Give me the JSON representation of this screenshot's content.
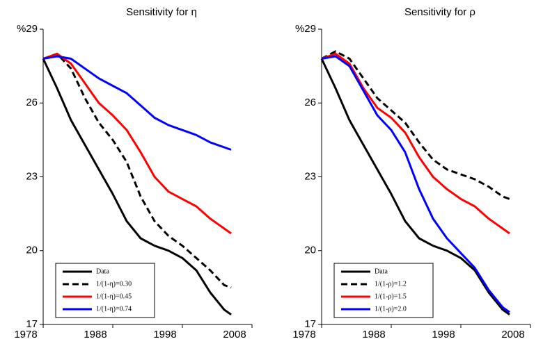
{
  "chart_data": [
    {
      "type": "line",
      "title": "Sensitivity for η",
      "x": [
        1978,
        1980,
        1982,
        1984,
        1986,
        1988,
        1990,
        1992,
        1994,
        1996,
        1998,
        2000,
        2002,
        2004,
        2005
      ],
      "xlim": [
        1978,
        2008
      ],
      "xticks": [
        1978,
        1988,
        1998,
        2008
      ],
      "ylim": [
        17,
        29
      ],
      "yticks": [
        17,
        20,
        23,
        26,
        {
          "value": 29,
          "label": "%29"
        }
      ],
      "legend": "lower left",
      "series": [
        {
          "name": "Data",
          "color": "#000000",
          "linestyle": "solid",
          "values": [
            27.8,
            26.6,
            25.3,
            24.3,
            23.3,
            22.3,
            21.2,
            20.5,
            20.2,
            20.0,
            19.7,
            19.2,
            18.3,
            17.6,
            17.4
          ]
        },
        {
          "name": "1/(1-η)=0.30",
          "color": "#000000",
          "linestyle": "dashed",
          "values": [
            27.8,
            28.0,
            27.4,
            26.2,
            25.2,
            24.5,
            23.6,
            22.2,
            21.2,
            20.6,
            20.2,
            19.7,
            19.2,
            18.6,
            18.5
          ]
        },
        {
          "name": "1/(1-η)=0.45",
          "color": "#ff0000",
          "linestyle": "solid",
          "values": [
            27.8,
            28.0,
            27.6,
            26.8,
            26.0,
            25.5,
            24.9,
            24.0,
            23.0,
            22.4,
            22.1,
            21.8,
            21.3,
            20.9,
            20.7
          ]
        },
        {
          "name": "1/(1-η)=0.74",
          "color": "#0000ff",
          "linestyle": "solid",
          "values": [
            27.8,
            27.9,
            27.8,
            27.4,
            27.0,
            26.7,
            26.4,
            25.9,
            25.4,
            25.1,
            24.9,
            24.7,
            24.4,
            24.2,
            24.1
          ]
        }
      ]
    },
    {
      "type": "line",
      "title": "Sensitivity for ρ",
      "x": [
        1978,
        1980,
        1982,
        1984,
        1986,
        1988,
        1990,
        1992,
        1994,
        1996,
        1998,
        2000,
        2002,
        2004,
        2005
      ],
      "xlim": [
        1978,
        2008
      ],
      "xticks": [
        1978,
        1988,
        1998,
        2008
      ],
      "ylim": [
        17,
        29
      ],
      "yticks": [
        17,
        20,
        23,
        26,
        {
          "value": 29,
          "label": "%29"
        }
      ],
      "legend": "lower left",
      "series": [
        {
          "name": "Data",
          "color": "#000000",
          "linestyle": "solid",
          "values": [
            27.8,
            26.6,
            25.3,
            24.3,
            23.3,
            22.3,
            21.2,
            20.5,
            20.2,
            20.0,
            19.7,
            19.2,
            18.3,
            17.6,
            17.4
          ]
        },
        {
          "name": "1/(1-ρ)=1.2",
          "color": "#000000",
          "linestyle": "dashed",
          "values": [
            27.8,
            28.1,
            27.8,
            27.0,
            26.2,
            25.7,
            25.2,
            24.4,
            23.7,
            23.3,
            23.1,
            22.9,
            22.6,
            22.2,
            22.1
          ]
        },
        {
          "name": "1/(1-ρ)=1.5",
          "color": "#ff0000",
          "linestyle": "solid",
          "values": [
            27.8,
            28.0,
            27.6,
            26.6,
            25.8,
            25.4,
            24.8,
            23.8,
            23.0,
            22.5,
            22.1,
            21.8,
            21.3,
            20.9,
            20.7
          ]
        },
        {
          "name": "1/(1-ρ)=2.0",
          "color": "#0000ff",
          "linestyle": "solid",
          "values": [
            27.8,
            27.9,
            27.5,
            26.5,
            25.5,
            24.9,
            24.0,
            22.5,
            21.3,
            20.5,
            19.9,
            19.3,
            18.4,
            17.7,
            17.5
          ]
        }
      ]
    }
  ]
}
